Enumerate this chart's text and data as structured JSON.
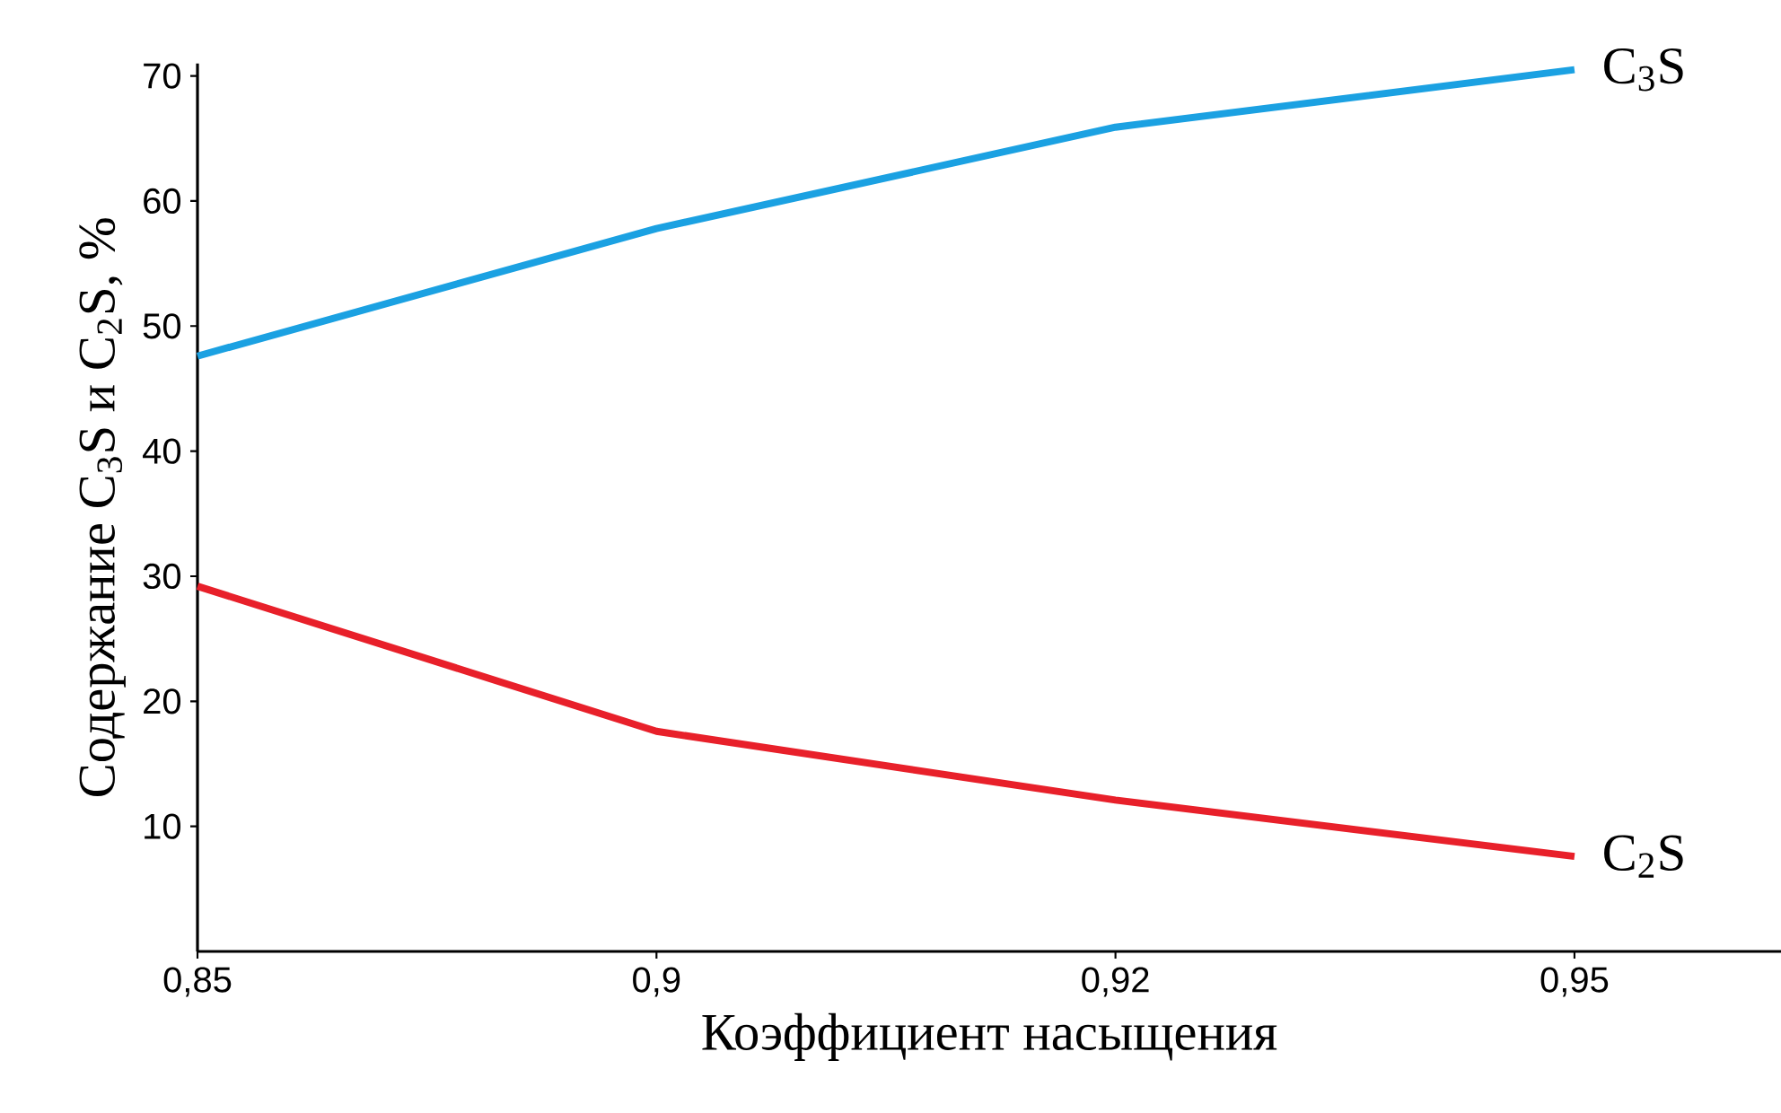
{
  "chart_data": {
    "type": "line",
    "xlabel": "Коэффициент насыщения",
    "ylabel": "Содержание C$_{3}$S и C$_{2}$S, %",
    "categories": [
      "0,85",
      "0,9",
      "0,92",
      "0,95"
    ],
    "series": [
      {
        "name": "C$_{3}$S",
        "color": "#1ba1e2",
        "values": [
          47.6,
          57.8,
          65.9,
          70.5
        ]
      },
      {
        "name": "C$_{2}$S",
        "color": "#e8202a",
        "values": [
          29.2,
          17.6,
          12.1,
          7.6
        ]
      }
    ],
    "ylim": [
      0,
      71
    ],
    "yticks": [
      10,
      20,
      30,
      40,
      50,
      60,
      70
    ]
  }
}
